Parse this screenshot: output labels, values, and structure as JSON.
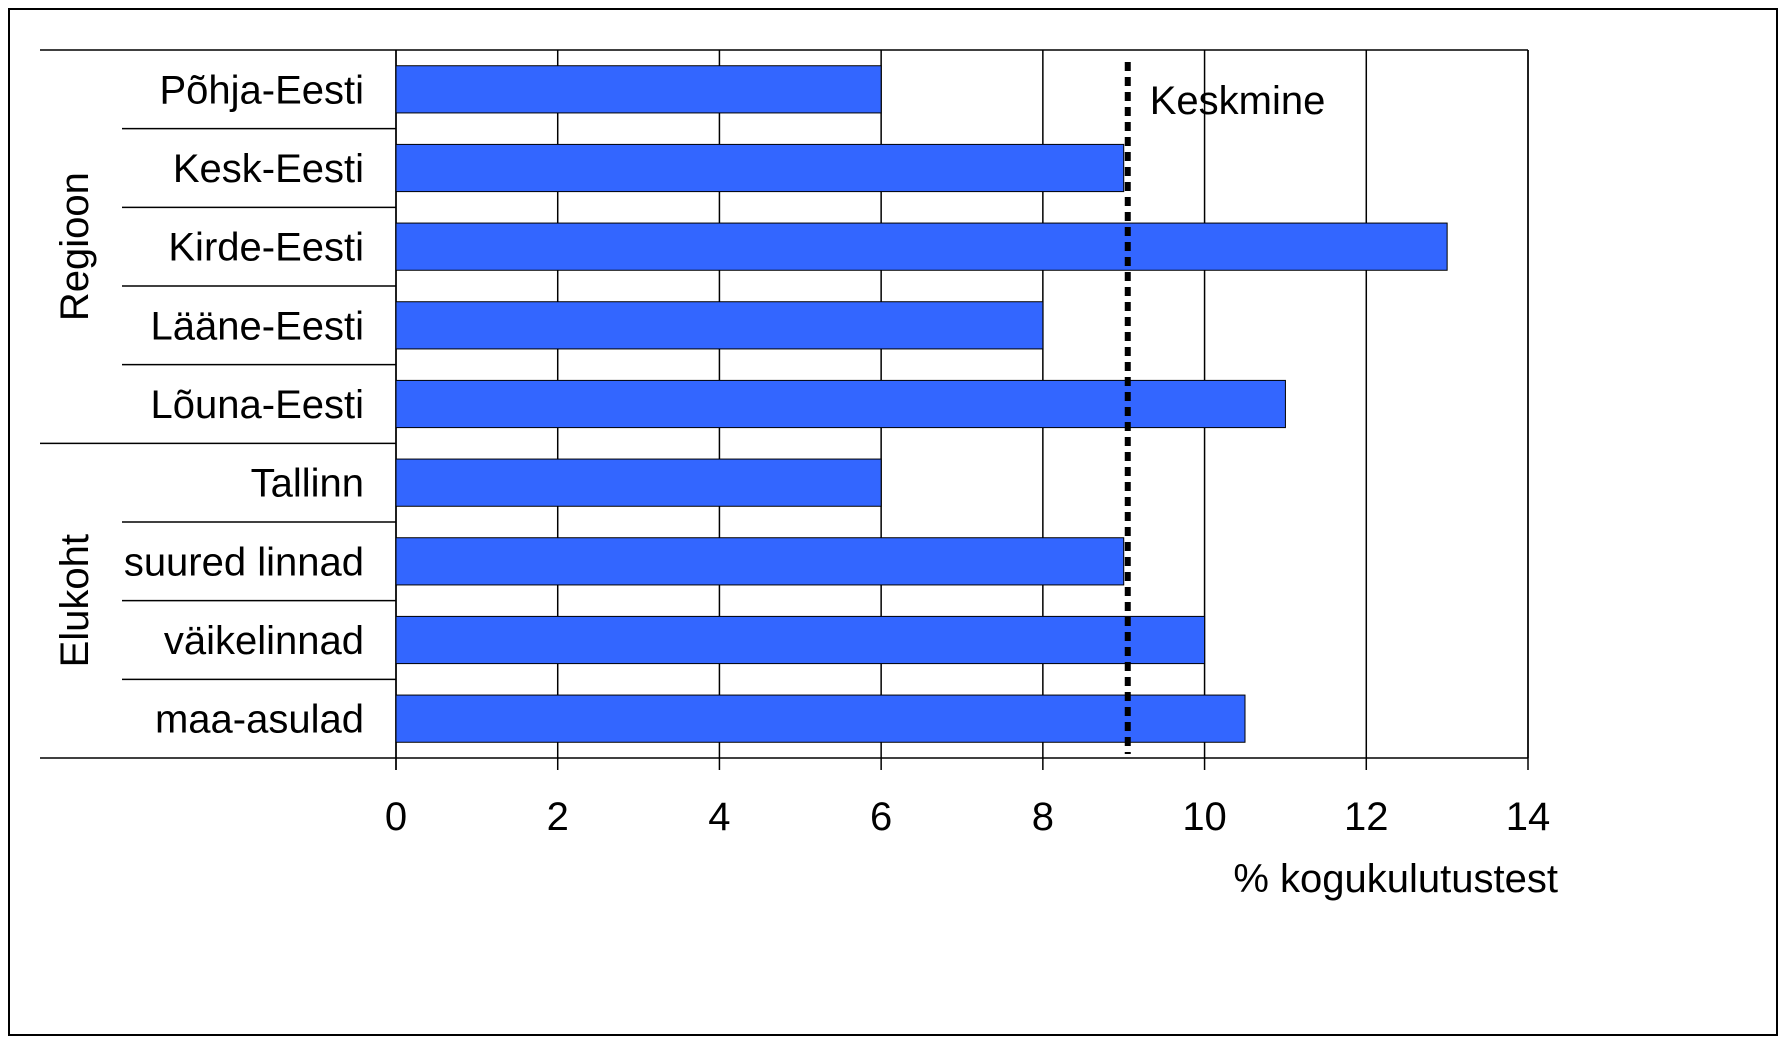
{
  "chart_data": {
    "type": "bar",
    "orientation": "horizontal",
    "title": "",
    "xlabel": "% kogukulutustest",
    "xlim": [
      0,
      14
    ],
    "xticks": [
      0,
      2,
      4,
      6,
      8,
      10,
      12,
      14
    ],
    "grid": true,
    "groups": [
      {
        "name": "Regioon",
        "categories": [
          "Põhja-Eesti",
          "Kesk-Eesti",
          "Kirde-Eesti",
          "Lääne-Eesti",
          "Lõuna-Eesti"
        ]
      },
      {
        "name": "Elukoht",
        "categories": [
          "Tallinn",
          "suured linnad",
          "väikelinnad",
          "maa-asulad"
        ]
      }
    ],
    "categories": [
      "Põhja-Eesti",
      "Kesk-Eesti",
      "Kirde-Eesti",
      "Lääne-Eesti",
      "Lõuna-Eesti",
      "Tallinn",
      "suured linnad",
      "väikelinnad",
      "maa-asulad"
    ],
    "values": [
      6,
      9,
      13,
      8,
      11,
      6,
      9,
      10,
      10.5
    ],
    "reference_line": {
      "label": "Keskmine",
      "value": 9.05
    },
    "colors": {
      "bar": "#3366ff",
      "bar_edge": "#000000",
      "grid": "#000000"
    }
  }
}
